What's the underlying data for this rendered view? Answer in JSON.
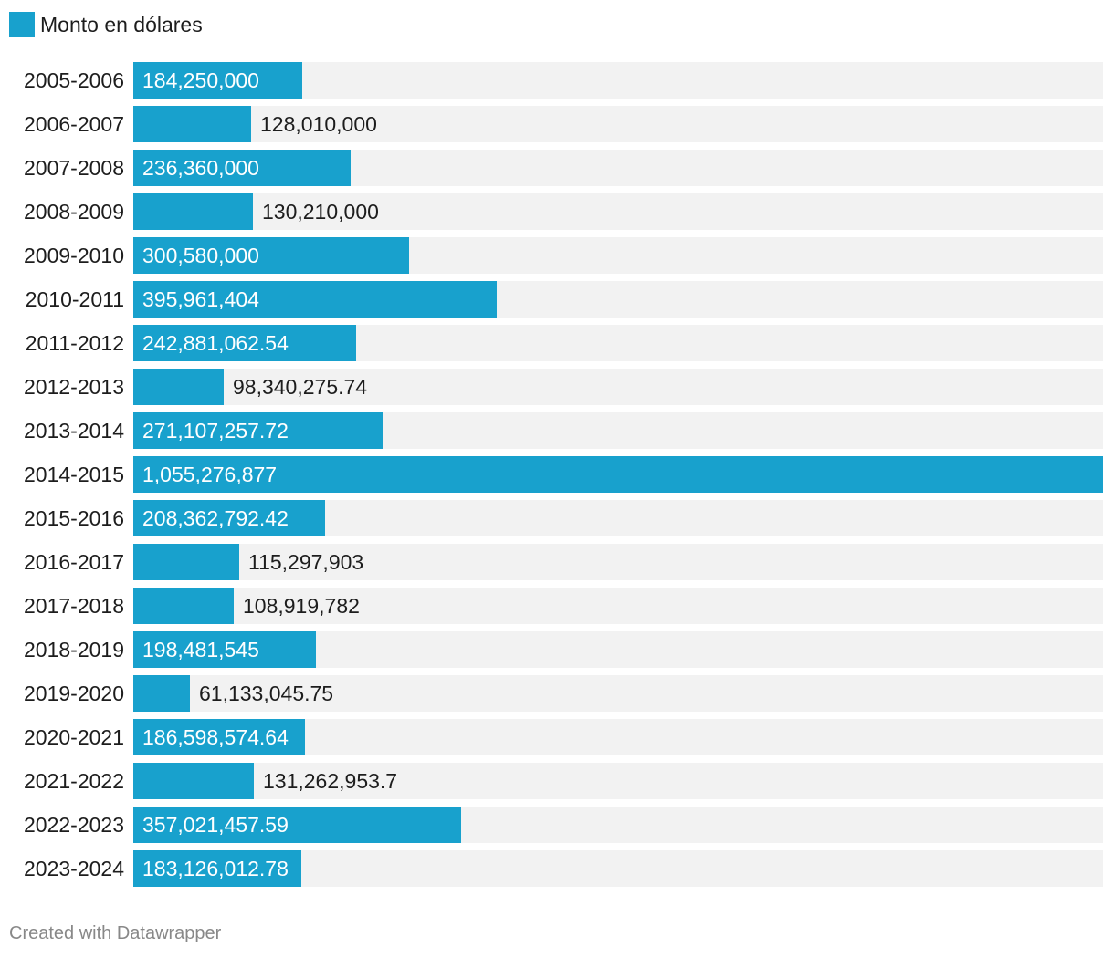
{
  "legend": {
    "label": "Monto en dólares",
    "color": "#18a1cd"
  },
  "footer": {
    "credit": "Created with Datawrapper"
  },
  "colors": {
    "bar": "#18a1cd",
    "track": "#f2f2f2"
  },
  "chart_data": {
    "type": "bar",
    "orientation": "horizontal",
    "grid": false,
    "legend_position": "top-left",
    "xlim": [
      0,
      1055276877
    ],
    "series": [
      {
        "name": "Monto en dólares"
      }
    ],
    "categories": [
      "2005-2006",
      "2006-2007",
      "2007-2008",
      "2008-2009",
      "2009-2010",
      "2010-2011",
      "2011-2012",
      "2012-2013",
      "2013-2014",
      "2014-2015",
      "2015-2016",
      "2016-2017",
      "2017-2018",
      "2018-2019",
      "2019-2020",
      "2020-2021",
      "2021-2022",
      "2022-2023",
      "2023-2024"
    ],
    "values": [
      184250000,
      128010000,
      236360000,
      130210000,
      300580000,
      395961404,
      242881062.54,
      98340275.74,
      271107257.72,
      1055276877,
      208362792.42,
      115297903,
      108919782,
      198481545,
      61133045.75,
      186598574.64,
      131262953.7,
      357021457.59,
      183126012.78
    ],
    "value_labels": [
      "184,250,000",
      "128,010,000",
      "236,360,000",
      "130,210,000",
      "300,580,000",
      "395,961,404",
      "242,881,062.54",
      "98,340,275.74",
      "271,107,257.72",
      "1,055,276,877",
      "208,362,792.42",
      "115,297,903",
      "108,919,782",
      "198,481,545",
      "61,133,045.75",
      "186,598,574.64",
      "131,262,953.7",
      "357,021,457.59",
      "183,126,012.78"
    ]
  }
}
